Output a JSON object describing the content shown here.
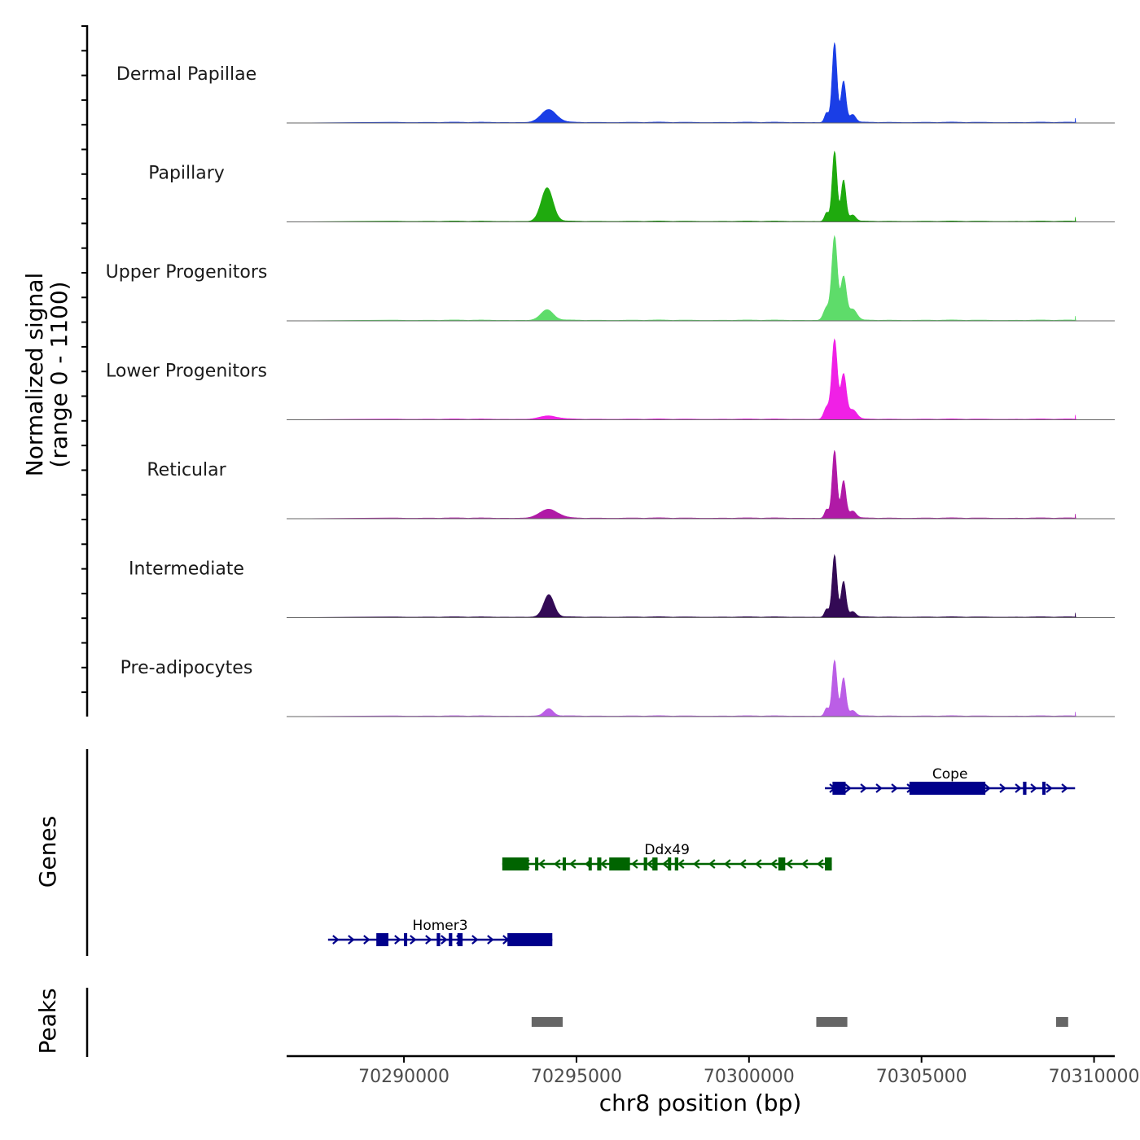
{
  "chart_data": {
    "type": "area",
    "title": "",
    "ylabel_line1": "Normalized signal",
    "ylabel_line2": "(range 0 - 1100)",
    "ylim": [
      0,
      1100
    ],
    "xlabel": "chr8 position (bp)",
    "xlim": [
      70286600,
      70310600
    ],
    "xticks": [
      70290000,
      70295000,
      70300000,
      70305000,
      70310000
    ],
    "xtick_labels": [
      "70290000",
      "70295000",
      "70300000",
      "70305000",
      "70310000"
    ],
    "tracks": [
      {
        "name": "Dermal Papillae",
        "color": "#1a3ee6",
        "peaks": [
          {
            "pos": 70294200,
            "height": 160,
            "width": 220
          },
          {
            "pos": 70302480,
            "height": 1000,
            "width": 70
          },
          {
            "pos": 70302740,
            "height": 520,
            "width": 70
          },
          {
            "pos": 70302250,
            "height": 120,
            "width": 60
          },
          {
            "pos": 70303000,
            "height": 100,
            "width": 90
          }
        ]
      },
      {
        "name": "Papillary",
        "color": "#1faa0e",
        "peaks": [
          {
            "pos": 70294150,
            "height": 420,
            "width": 170
          },
          {
            "pos": 70302480,
            "height": 880,
            "width": 70
          },
          {
            "pos": 70302740,
            "height": 520,
            "width": 70
          },
          {
            "pos": 70302250,
            "height": 110,
            "width": 60
          },
          {
            "pos": 70303000,
            "height": 80,
            "width": 90
          }
        ]
      },
      {
        "name": "Upper Progenitors",
        "color": "#5edc6a",
        "peaks": [
          {
            "pos": 70294150,
            "height": 130,
            "width": 180
          },
          {
            "pos": 70302480,
            "height": 1050,
            "width": 80
          },
          {
            "pos": 70302740,
            "height": 540,
            "width": 80
          },
          {
            "pos": 70302250,
            "height": 160,
            "width": 90
          },
          {
            "pos": 70303000,
            "height": 140,
            "width": 120
          }
        ]
      },
      {
        "name": "Lower Progenitors",
        "color": "#f020e6",
        "peaks": [
          {
            "pos": 70294200,
            "height": 40,
            "width": 250
          },
          {
            "pos": 70302480,
            "height": 1000,
            "width": 80
          },
          {
            "pos": 70302740,
            "height": 560,
            "width": 80
          },
          {
            "pos": 70302250,
            "height": 150,
            "width": 80
          },
          {
            "pos": 70303000,
            "height": 120,
            "width": 120
          }
        ]
      },
      {
        "name": "Reticular",
        "color": "#b01aa6",
        "peaks": [
          {
            "pos": 70294200,
            "height": 110,
            "width": 260
          },
          {
            "pos": 70302480,
            "height": 850,
            "width": 70
          },
          {
            "pos": 70302740,
            "height": 470,
            "width": 70
          },
          {
            "pos": 70302250,
            "height": 110,
            "width": 60
          },
          {
            "pos": 70303000,
            "height": 90,
            "width": 100
          }
        ]
      },
      {
        "name": "Intermediate",
        "color": "#330a55",
        "peaks": [
          {
            "pos": 70294200,
            "height": 280,
            "width": 150
          },
          {
            "pos": 70302480,
            "height": 780,
            "width": 70
          },
          {
            "pos": 70302740,
            "height": 450,
            "width": 70
          },
          {
            "pos": 70302250,
            "height": 100,
            "width": 60
          },
          {
            "pos": 70303000,
            "height": 70,
            "width": 90
          }
        ]
      },
      {
        "name": "Pre-adipocytes",
        "color": "#bb5ee6",
        "peaks": [
          {
            "pos": 70294200,
            "height": 90,
            "width": 130
          },
          {
            "pos": 70302480,
            "height": 700,
            "width": 70
          },
          {
            "pos": 70302740,
            "height": 480,
            "width": 70
          },
          {
            "pos": 70302250,
            "height": 100,
            "width": 60
          },
          {
            "pos": 70303000,
            "height": 70,
            "width": 90
          }
        ]
      }
    ],
    "genes_title": "Genes",
    "genes": [
      {
        "name": "Cope",
        "strand": "+",
        "color": "#00008b",
        "row": 0,
        "start": 70302200,
        "end": 70309450,
        "exons": [
          [
            70302420,
            70302800
          ],
          [
            70304650,
            70306850
          ],
          [
            70307940,
            70308040
          ],
          [
            70308500,
            70308560
          ]
        ]
      },
      {
        "name": "Ddx49",
        "strand": "-",
        "color": "#006400",
        "row": 1,
        "start": 70292850,
        "end": 70302400,
        "exons": [
          [
            70292850,
            70293620
          ],
          [
            70293800,
            70293880
          ],
          [
            70294600,
            70294680
          ],
          [
            70295350,
            70295440
          ],
          [
            70295600,
            70295720
          ],
          [
            70295950,
            70296550
          ],
          [
            70296950,
            70297050
          ],
          [
            70297200,
            70297350
          ],
          [
            70297650,
            70297720
          ],
          [
            70297850,
            70297950
          ],
          [
            70300850,
            70301050
          ],
          [
            70302200,
            70302400
          ]
        ]
      },
      {
        "name": "Homer3",
        "strand": "+",
        "color": "#00008b",
        "row": 2,
        "start": 70287800,
        "end": 70294300,
        "exons": [
          [
            70289200,
            70289550
          ],
          [
            70290000,
            70290080
          ],
          [
            70290950,
            70291050
          ],
          [
            70291300,
            70291400
          ],
          [
            70291550,
            70291700
          ],
          [
            70293000,
            70294300
          ]
        ]
      }
    ],
    "peaks_title": "Peaks",
    "peak_regions": [
      [
        70293700,
        70294600
      ],
      [
        70301950,
        70302850
      ],
      [
        70308900,
        70309250
      ]
    ]
  }
}
